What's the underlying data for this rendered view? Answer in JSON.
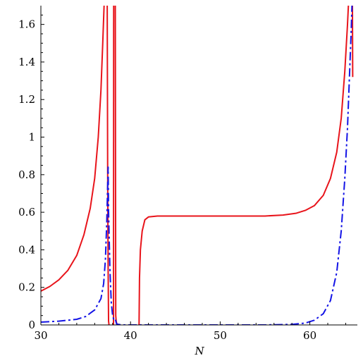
{
  "chart_data": {
    "type": "line",
    "title": "",
    "xlabel": "N",
    "ylabel": "",
    "xlim": [
      30,
      65.3
    ],
    "ylim": [
      0,
      1.7
    ],
    "x_ticks": [
      30,
      40,
      50,
      60
    ],
    "x_tick_labels": [
      "30",
      "40",
      "50",
      "60"
    ],
    "y_ticks": [
      0,
      0.2,
      0.4,
      0.6,
      0.8,
      1,
      1.2,
      1.4,
      1.6
    ],
    "y_tick_labels": [
      "0",
      "0.2",
      "0.4",
      "0.6",
      "0.8",
      "1",
      "1.2",
      "1.4",
      "1.6"
    ],
    "grid": false,
    "legend": "none",
    "series": [
      {
        "style": "solid",
        "color": "#e8141b",
        "segments": [
          [
            [
              30.0,
              0.18
            ],
            [
              31.0,
              0.205
            ],
            [
              32.0,
              0.24
            ],
            [
              33.0,
              0.29
            ],
            [
              34.0,
              0.37
            ],
            [
              34.8,
              0.48
            ],
            [
              35.5,
              0.62
            ],
            [
              36.0,
              0.78
            ],
            [
              36.4,
              1.0
            ],
            [
              36.7,
              1.25
            ],
            [
              36.9,
              1.5
            ],
            [
              37.05,
              1.7
            ]
          ],
          [
            [
              37.4,
              1.7
            ],
            [
              37.45,
              0.8
            ],
            [
              37.5,
              0.3
            ],
            [
              37.55,
              0.02
            ],
            [
              37.6,
              0.0
            ]
          ],
          [
            [
              38.1,
              0.0
            ],
            [
              38.12,
              1.7
            ]
          ],
          [
            [
              38.3,
              1.7
            ],
            [
              38.35,
              0.05
            ],
            [
              38.4,
              0.02
            ],
            [
              38.5,
              0.0
            ]
          ],
          [
            [
              40.95,
              0.0
            ],
            [
              40.97,
              0.1
            ],
            [
              41.0,
              0.25
            ],
            [
              41.1,
              0.4
            ],
            [
              41.3,
              0.5
            ],
            [
              41.6,
              0.56
            ],
            [
              42.0,
              0.575
            ],
            [
              43.0,
              0.58
            ],
            [
              50.0,
              0.58
            ],
            [
              55.0,
              0.58
            ],
            [
              57.0,
              0.585
            ],
            [
              58.5,
              0.595
            ],
            [
              59.5,
              0.61
            ],
            [
              60.5,
              0.635
            ],
            [
              61.5,
              0.69
            ],
            [
              62.3,
              0.78
            ],
            [
              63.0,
              0.92
            ],
            [
              63.5,
              1.1
            ],
            [
              63.9,
              1.35
            ],
            [
              64.2,
              1.6
            ],
            [
              64.3,
              1.7
            ]
          ],
          [
            [
              64.75,
              1.7
            ],
            [
              64.78,
              1.32
            ]
          ]
        ]
      },
      {
        "style": "dashdot",
        "color": "#1414e6",
        "segments": [
          [
            [
              30.0,
              0.015
            ],
            [
              32.0,
              0.02
            ],
            [
              34.0,
              0.03
            ],
            [
              35.0,
              0.045
            ],
            [
              36.0,
              0.08
            ],
            [
              36.7,
              0.14
            ],
            [
              37.0,
              0.22
            ],
            [
              37.2,
              0.35
            ],
            [
              37.35,
              0.55
            ],
            [
              37.45,
              0.75
            ],
            [
              37.5,
              0.84
            ],
            [
              37.55,
              0.6
            ],
            [
              37.7,
              0.3
            ],
            [
              37.85,
              0.12
            ],
            [
              38.0,
              0.05
            ],
            [
              38.15,
              0.025
            ],
            [
              38.3,
              0.03
            ],
            [
              38.45,
              0.005
            ],
            [
              39.0,
              0.0
            ],
            [
              45.0,
              0.0
            ],
            [
              55.0,
              0.0
            ],
            [
              58.0,
              0.003
            ],
            [
              59.5,
              0.01
            ],
            [
              60.5,
              0.025
            ],
            [
              61.5,
              0.06
            ],
            [
              62.3,
              0.13
            ],
            [
              63.0,
              0.28
            ],
            [
              63.5,
              0.5
            ],
            [
              63.9,
              0.78
            ],
            [
              64.2,
              1.05
            ],
            [
              64.4,
              1.3
            ],
            [
              64.6,
              1.55
            ],
            [
              64.7,
              1.7
            ]
          ]
        ]
      }
    ]
  }
}
